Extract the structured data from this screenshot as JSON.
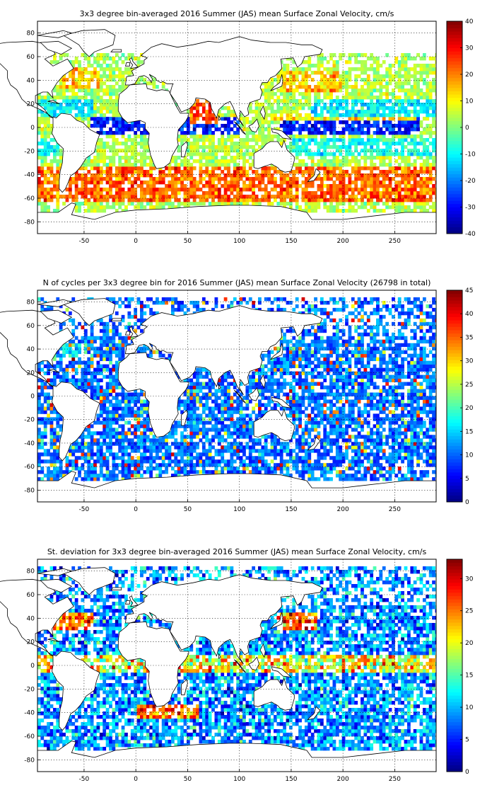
{
  "chart_data": [
    {
      "type": "heatmap",
      "title": "3x3 degree bin-averaged 2016 Summer (JAS) mean Surface Zonal Velocity, cm/s",
      "xlim": [
        -95,
        290
      ],
      "ylim": [
        -90,
        90
      ],
      "x_ticks": [
        -50,
        0,
        50,
        100,
        150,
        200,
        250
      ],
      "y_ticks": [
        -80,
        -60,
        -40,
        -20,
        0,
        20,
        40,
        60,
        80
      ],
      "grid": true,
      "colorbar": {
        "min": -40,
        "max": 40,
        "ticks": [
          -40,
          -30,
          -20,
          -10,
          0,
          10,
          20,
          30,
          40
        ],
        "colormap": "jet"
      },
      "bin_size_deg": 3
    },
    {
      "type": "heatmap",
      "title": "N of cycles per 3x3 degree bin for 2016 Summer (JAS) mean Surface Zonal Velocity (26798 in total)",
      "xlim": [
        -95,
        290
      ],
      "ylim": [
        -90,
        90
      ],
      "x_ticks": [
        -50,
        0,
        50,
        100,
        150,
        200,
        250
      ],
      "y_ticks": [
        -80,
        -60,
        -40,
        -20,
        0,
        20,
        40,
        60,
        80
      ],
      "grid": true,
      "colorbar": {
        "min": 0,
        "max": 45,
        "ticks": [
          0,
          5,
          10,
          15,
          20,
          25,
          30,
          35,
          40,
          45
        ],
        "colormap": "jet"
      },
      "bin_size_deg": 3
    },
    {
      "type": "heatmap",
      "title": "St. deviation for 3x3 degree bin-averaged 2016 Summer (JAS) mean Surface Zonal Velocity, cm/s",
      "xlim": [
        -95,
        290
      ],
      "ylim": [
        -90,
        90
      ],
      "x_ticks": [
        -50,
        0,
        50,
        100,
        150,
        200,
        250
      ],
      "y_ticks": [
        -80,
        -60,
        -40,
        -20,
        0,
        20,
        40,
        60,
        80
      ],
      "grid": true,
      "colorbar": {
        "min": 0,
        "max": 33,
        "ticks": [
          0,
          5,
          10,
          15,
          20,
          25,
          30
        ],
        "colormap": "jet"
      },
      "bin_size_deg": 3
    }
  ]
}
